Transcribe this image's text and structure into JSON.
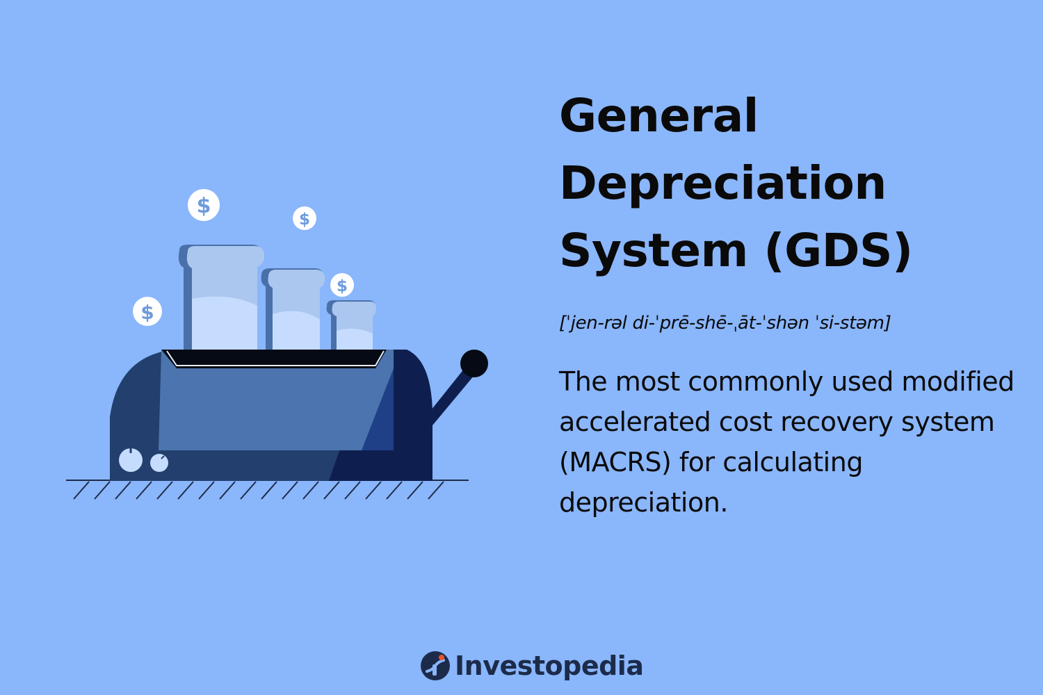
{
  "title": "General\nDepreciation\nSystem (GDS)",
  "pronunciation": "[ˈjen-rəl di-ˈprē-shē-ˌāt-ˈshən ˈsi-stəm]",
  "definition": "The most commonly used modified accelerated cost recovery system (MACRS) for calculating depreciation.",
  "brand": {
    "name": "Investopedia",
    "logo_icon": "investopedia-logo-icon"
  },
  "illustration": {
    "subject": "toaster-with-toast",
    "coin_symbol": "$",
    "coin_count": 4
  },
  "colors": {
    "background": "#8ab6fb",
    "toaster_dark": "#223f6d",
    "toaster_panel": "#4c74ae",
    "toaster_shadow": "#0e1f4f",
    "toast": "#c6dcff",
    "logo_accent": "#e8542a"
  }
}
